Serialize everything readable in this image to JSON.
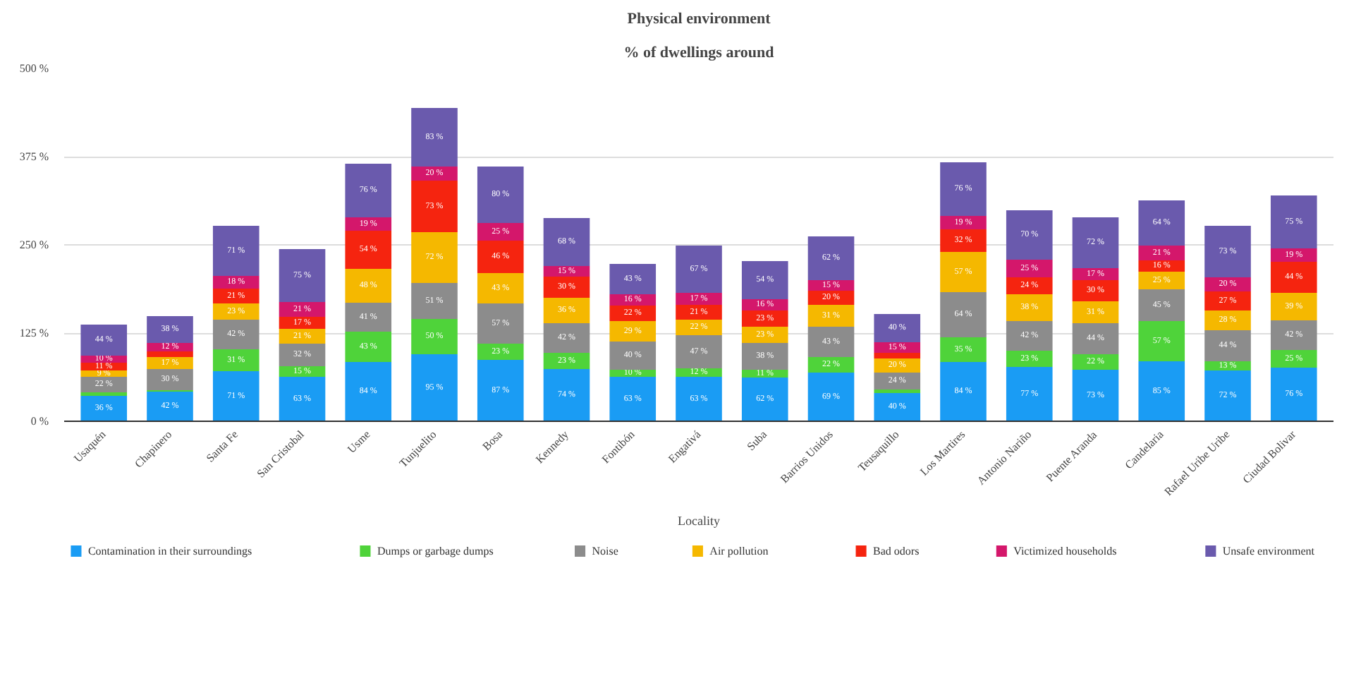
{
  "chart_data": {
    "type": "bar",
    "stacked": true,
    "title": "Physical environment",
    "subtitle": "% of dwellings around",
    "xlabel": "Locality",
    "categories": [
      "Usaquén",
      "Chapinero",
      "Santa Fe",
      "San Cristobal",
      "Usme",
      "Tunjuelito",
      "Bosa",
      "Kennedy",
      "Fontibón",
      "Engativá",
      "Suba",
      "Barrios Unidos",
      "Teusaquillo",
      "Los Martires",
      "Antonio Nariño",
      "Puente Aranda",
      "Candelaria",
      "Rafael Uribe Uribe",
      "Ciudad Bolivar"
    ],
    "series": [
      {
        "name": "Contamination in their surroundings",
        "color": "#1a9cf4",
        "values": [
          36,
          42,
          71,
          63,
          84,
          95,
          87,
          74,
          63,
          63,
          62,
          69,
          40,
          84,
          77,
          73,
          85,
          72,
          76
        ],
        "value_labels": [
          "36 %",
          "42 %",
          "71 %",
          "63 %",
          "84 %",
          "95 %",
          "87 %",
          "74 %",
          "63 %",
          "63 %",
          "62 %",
          "69 %",
          "40 %",
          "84 %",
          "77 %",
          "73 %",
          "85 %",
          "72 %",
          "76 %"
        ]
      },
      {
        "name": "Dumps or garbage dumps",
        "color": "#4fd33a",
        "values": [
          5,
          2,
          31,
          15,
          43,
          50,
          23,
          23,
          10,
          12,
          11,
          22,
          5,
          35,
          23,
          22,
          57,
          13,
          25
        ],
        "value_labels": [
          null,
          null,
          "31 %",
          "15 %",
          "43 %",
          "50 %",
          "23 %",
          "23 %",
          "10 %",
          "12 %",
          "11 %",
          "22 %",
          null,
          "35 %",
          "23 %",
          "22 %",
          "57 %",
          "13 %",
          "25 %"
        ]
      },
      {
        "name": "Noise",
        "color": "#8c8c8c",
        "values": [
          22,
          30,
          42,
          32,
          41,
          51,
          57,
          42,
          40,
          47,
          38,
          43,
          24,
          64,
          42,
          44,
          45,
          44,
          42
        ],
        "value_labels": [
          "22 %",
          "30 %",
          "42 %",
          "32 %",
          "41 %",
          "51 %",
          "57 %",
          "42 %",
          "40 %",
          "47 %",
          "38 %",
          "43 %",
          "24 %",
          "64 %",
          "42 %",
          "44 %",
          "45 %",
          "44 %",
          "42 %"
        ]
      },
      {
        "name": "Air pollution",
        "color": "#f5b800",
        "values": [
          9,
          17,
          23,
          21,
          48,
          72,
          43,
          36,
          29,
          22,
          23,
          31,
          20,
          57,
          38,
          31,
          25,
          28,
          39
        ],
        "value_labels": [
          "9 %",
          "17 %",
          "23 %",
          "21 %",
          "48 %",
          "72 %",
          "43 %",
          "36 %",
          "29 %",
          "22 %",
          "23 %",
          "31 %",
          "20 %",
          "57 %",
          "38 %",
          "31 %",
          "25 %",
          "28 %",
          "39 %"
        ]
      },
      {
        "name": "Bad odors",
        "color": "#f5240f",
        "values": [
          11,
          8,
          21,
          17,
          54,
          73,
          46,
          30,
          22,
          21,
          23,
          20,
          8,
          32,
          24,
          30,
          16,
          27,
          44
        ],
        "value_labels": [
          "11 %",
          null,
          "21 %",
          "17 %",
          "54 %",
          "73 %",
          "46 %",
          "30 %",
          "22 %",
          "21 %",
          "23 %",
          "20 %",
          null,
          "32 %",
          "24 %",
          "30 %",
          "16 %",
          "27 %",
          "44 %"
        ]
      },
      {
        "name": "Victimized households",
        "color": "#d4176b",
        "values": [
          10,
          12,
          18,
          21,
          19,
          20,
          25,
          15,
          16,
          17,
          16,
          15,
          15,
          19,
          25,
          17,
          21,
          20,
          19
        ],
        "value_labels": [
          "10 %",
          "12 %",
          "18 %",
          "21 %",
          "19 %",
          "20 %",
          "25 %",
          "15 %",
          "16 %",
          "17 %",
          "16 %",
          "15 %",
          "15 %",
          "19 %",
          "25 %",
          "17 %",
          "21 %",
          "20 %",
          "19 %"
        ]
      },
      {
        "name": "Unsafe environment",
        "color": "#6a5aad",
        "values": [
          44,
          38,
          71,
          75,
          76,
          83,
          80,
          68,
          43,
          67,
          54,
          62,
          40,
          76,
          70,
          72,
          64,
          73,
          75
        ],
        "value_labels": [
          "44 %",
          "38 %",
          "71 %",
          "75 %",
          "76 %",
          "83 %",
          "80 %",
          "68 %",
          "43 %",
          "67 %",
          "54 %",
          "62 %",
          "40 %",
          "76 %",
          "70 %",
          "72 %",
          "64 %",
          "73 %",
          "75 %"
        ]
      }
    ],
    "ylim": [
      0,
      500
    ],
    "yticks": [
      {
        "value": 0,
        "label": "0 %"
      },
      {
        "value": 125,
        "label": "125 %"
      },
      {
        "value": 250,
        "label": "250 %"
      },
      {
        "value": 375,
        "label": "375 %"
      },
      {
        "value": 500,
        "label": "500 %"
      }
    ],
    "grid": "y",
    "legend": "bottom",
    "data_labels": true
  }
}
